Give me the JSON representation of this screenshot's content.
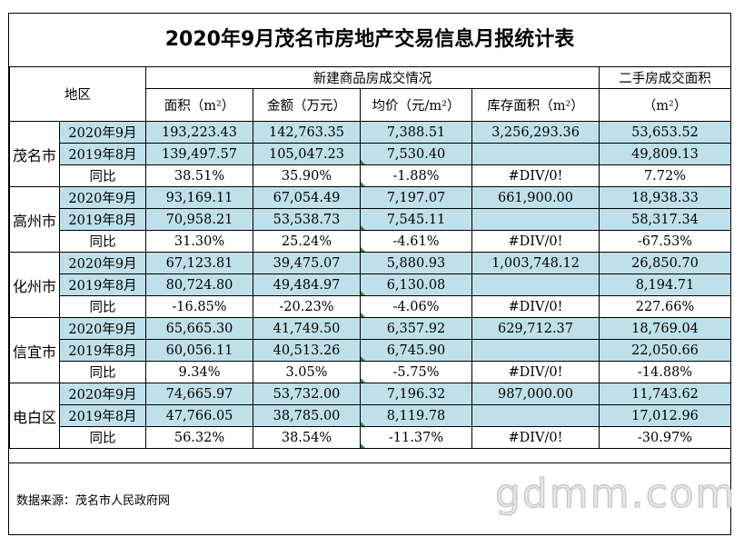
{
  "title": "2020年9月茂名市房地产交易信息月报统计表",
  "header": {
    "region": "地区",
    "new_group": "新建商品房成交情况",
    "second_hand": "二手房成交面积",
    "second_hand_unit": "（m²）",
    "columns": [
      "面积（m²）",
      "金额（万元）",
      "均价（元/m²）",
      "库存面积（m²）"
    ]
  },
  "rows": [
    {
      "region": "茂名市",
      "r1": {
        "period": "2020年9月",
        "area": "193,223.43",
        "amount": "142,763.35",
        "price": "7,388.51",
        "stock": "3,256,293.36",
        "second": "53,653.52"
      },
      "r2": {
        "period": "2019年8月",
        "area": "139,497.57",
        "amount": "105,047.23",
        "price": "7,530.40",
        "stock": "",
        "second": "49,809.13"
      },
      "r3": {
        "period": "同比",
        "area": "38.51%",
        "amount": "35.90%",
        "price": "-1.88%",
        "stock": "#DIV/0!",
        "second": "7.72%"
      }
    },
    {
      "region": "高州市",
      "r1": {
        "period": "2020年9月",
        "area": "93,169.11",
        "amount": "67,054.49",
        "price": "7,197.07",
        "stock": "661,900.00",
        "second": "18,938.33"
      },
      "r2": {
        "period": "2019年8月",
        "area": "70,958.21",
        "amount": "53,538.73",
        "price": "7,545.11",
        "stock": "",
        "second": "58,317.34"
      },
      "r3": {
        "period": "同比",
        "area": "31.30%",
        "amount": "25.24%",
        "price": "-4.61%",
        "stock": "#DIV/0!",
        "second": "-67.53%"
      }
    },
    {
      "region": "化州市",
      "r1": {
        "period": "2020年9月",
        "area": "67,123.81",
        "amount": "39,475.07",
        "price": "5,880.93",
        "stock": "1,003,748.12",
        "second": "26,850.70"
      },
      "r2": {
        "period": "2019年8月",
        "area": "80,724.80",
        "amount": "49,484.97",
        "price": "6,130.08",
        "stock": "",
        "second": "8,194.71"
      },
      "r3": {
        "period": "同比",
        "area": "-16.85%",
        "amount": "-20.23%",
        "price": "-4.06%",
        "stock": "#DIV/0!",
        "second": "227.66%"
      }
    },
    {
      "region": "信宜市",
      "r1": {
        "period": "2020年9月",
        "area": "65,665.30",
        "amount": "41,749.50",
        "price": "6,357.92",
        "stock": "629,712.37",
        "second": "18,769.04"
      },
      "r2": {
        "period": "2019年8月",
        "area": "60,056.11",
        "amount": "40,513.26",
        "price": "6,745.90",
        "stock": "",
        "second": "22,050.66"
      },
      "r3": {
        "period": "同比",
        "area": "9.34%",
        "amount": "3.05%",
        "price": "-5.75%",
        "stock": "#DIV/0!",
        "second": "-14.88%"
      }
    },
    {
      "region": "电白区",
      "r1": {
        "period": "2020年9月",
        "area": "74,665.97",
        "amount": "53,732.00",
        "price": "7,196.32",
        "stock": "987,000.00",
        "second": "11,743.62"
      },
      "r2": {
        "period": "2019年8月",
        "area": "47,766.05",
        "amount": "38,785.00",
        "price": "8,119.78",
        "stock": "",
        "second": "17,012.96"
      },
      "r3": {
        "period": "同比",
        "area": "56.32%",
        "amount": "38.54%",
        "price": "-11.37%",
        "stock": "#DIV/0!",
        "second": "-30.97%"
      }
    }
  ],
  "source": "数据来源：茂名市人民政府网",
  "watermark": "gdmm.com",
  "colors": {
    "highlight": "#bfe0ea",
    "marker": "#2e8b2e"
  }
}
